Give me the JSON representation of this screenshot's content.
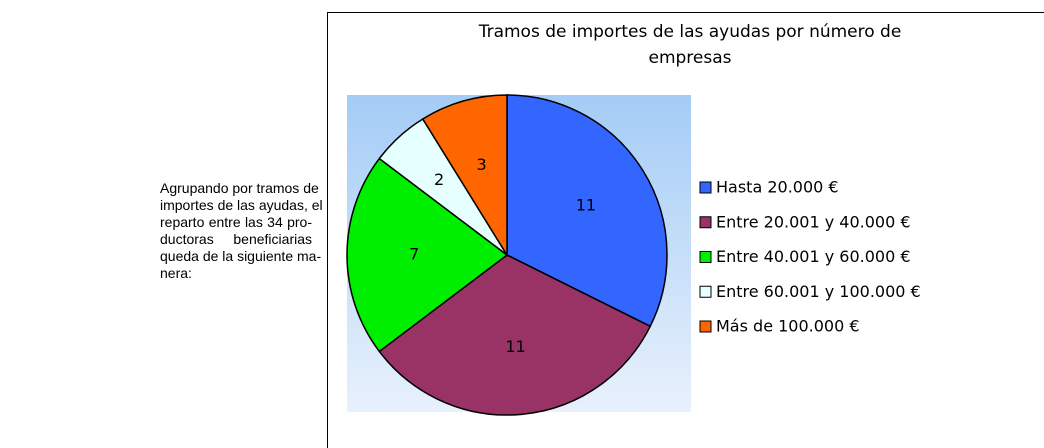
{
  "paragraph": {
    "lines": [
      "Agrupando por tramos de",
      "importes de las ayudas, el",
      "reparto entre las 34 pro-",
      "ductoras beneficiarias",
      "queda de la siguiente ma-",
      "nera:"
    ]
  },
  "chart_data": {
    "type": "pie",
    "title": [
      "Tramos de importes de las ayudas por número de",
      "empresas"
    ],
    "categories": [
      "Hasta 20.000 €",
      "Entre 20.001 y 40.000 €",
      "Entre 40.001 y 60.000 €",
      "Entre 60.001 y 100.000 €",
      "Más de 100.000 €"
    ],
    "values": [
      11,
      11,
      7,
      2,
      3
    ],
    "colors": [
      "#3366ff",
      "#993366",
      "#00ee00",
      "#e6ffff",
      "#ff6600"
    ],
    "legend": "right"
  }
}
